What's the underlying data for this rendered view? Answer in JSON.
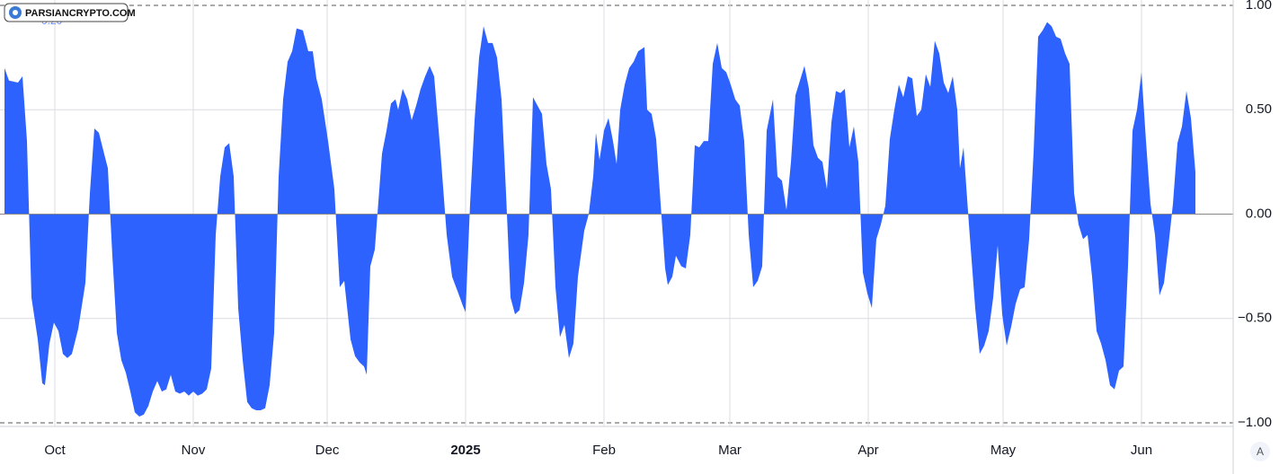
{
  "watermark": "PARSIANCRYPTO.COM",
  "legend_value": "0.20",
  "scale_button": "A",
  "chart_data": {
    "type": "area",
    "color": "#2e62ff",
    "grid": true,
    "x": [
      0,
      1,
      3,
      4,
      5,
      6,
      7.4,
      8.4,
      9,
      10,
      11,
      12,
      13,
      14,
      15,
      16.4,
      18,
      19,
      20,
      21,
      22.4,
      23,
      24,
      25,
      26,
      27,
      28,
      29,
      30,
      31,
      32,
      33,
      34,
      35,
      36,
      37,
      38,
      39,
      40,
      41,
      42,
      43,
      44,
      45,
      46,
      47,
      48,
      49,
      50,
      51,
      52,
      53,
      54,
      55,
      56,
      57,
      58,
      59,
      60,
      61,
      62,
      63,
      64,
      65,
      66.4,
      67.6,
      68.6,
      69.4,
      70.6,
      72,
      73.4,
      74.6,
      75.6,
      77,
      78,
      79,
      80,
      80.6,
      81.4,
      82.4,
      84,
      85,
      86,
      87,
      87.6,
      88.6,
      89.6,
      90.6,
      91.6,
      92.6,
      93.6,
      94.6,
      95.6,
      97,
      98.4,
      99.6,
      101,
      102,
      102.6,
      103.6,
      104.6,
      105.6,
      106.6,
      107.6,
      108.6,
      109.6,
      110.6,
      111.6,
      112.6,
      113.6,
      114.6,
      115.6,
      116.6,
      117.6,
      118.6,
      119.6,
      120.6,
      121.6,
      122.6,
      123.6,
      124.6,
      125.6,
      126.6,
      127.6,
      129,
      130,
      131,
      131.6,
      132.4,
      133.4,
      134.4,
      135.4,
      136.2,
      137,
      138,
      139,
      140,
      141,
      142.4,
      143,
      144,
      145,
      146,
      147,
      147.6,
      148.6,
      149.4,
      150.6,
      151.6,
      152.6,
      153.6,
      154.6,
      155.6,
      156.6,
      157.6,
      158.6,
      159.6,
      160.6,
      161.6,
      162.6,
      163.6,
      164.6,
      165.6,
      166.6,
      167.6,
      168.6,
      169.6,
      171,
      172,
      173,
      174,
      175,
      176,
      177,
      178,
      179,
      180,
      181,
      182,
      183,
      184,
      185,
      186,
      187,
      188,
      189,
      190,
      191,
      192,
      193,
      194,
      195,
      196,
      197,
      198,
      199,
      200,
      201,
      202,
      203,
      204,
      205,
      206,
      207,
      208,
      209,
      210,
      211,
      212,
      212.6,
      213.4,
      214.6,
      216,
      217,
      218,
      219,
      220,
      221,
      222,
      223,
      224,
      225,
      226,
      227,
      228,
      229,
      230,
      231,
      232,
      233,
      234,
      235,
      236,
      237,
      238,
      239,
      240,
      241,
      242,
      243,
      244,
      245,
      246,
      247,
      248,
      249,
      250,
      251,
      252,
      253,
      254,
      255,
      256,
      257,
      258,
      259,
      260,
      261,
      262,
      263,
      264,
      265
    ],
    "values": [
      0.7,
      0.64,
      0.63,
      0.66,
      0.35,
      -0.4,
      -0.6,
      -0.81,
      -0.82,
      -0.62,
      -0.52,
      -0.56,
      -0.67,
      -0.69,
      -0.67,
      -0.55,
      -0.33,
      0.1,
      0.41,
      0.39,
      0.27,
      0.22,
      -0.2,
      -0.57,
      -0.7,
      -0.76,
      -0.85,
      -0.95,
      -0.97,
      -0.96,
      -0.92,
      -0.85,
      -0.8,
      -0.85,
      -0.84,
      -0.77,
      -0.85,
      -0.86,
      -0.85,
      -0.87,
      -0.85,
      -0.87,
      -0.86,
      -0.84,
      -0.74,
      -0.1,
      0.18,
      0.32,
      0.34,
      0.18,
      -0.45,
      -0.7,
      -0.9,
      -0.93,
      -0.94,
      -0.94,
      -0.93,
      -0.82,
      -0.57,
      0.18,
      0.55,
      0.73,
      0.78,
      0.89,
      0.88,
      0.78,
      0.78,
      0.65,
      0.55,
      0.35,
      0.12,
      -0.35,
      -0.32,
      -0.6,
      -0.68,
      -0.71,
      -0.73,
      -0.77,
      -0.25,
      -0.17,
      0.29,
      0.4,
      0.53,
      0.55,
      0.5,
      0.6,
      0.55,
      0.45,
      0.52,
      0.6,
      0.66,
      0.71,
      0.66,
      0.3,
      -0.1,
      -0.3,
      -0.38,
      -0.44,
      -0.47,
      0.05,
      0.45,
      0.75,
      0.9,
      0.82,
      0.82,
      0.75,
      0.55,
      0.1,
      -0.4,
      -0.48,
      -0.46,
      -0.33,
      -0.1,
      0.56,
      0.52,
      0.48,
      0.24,
      0.12,
      -0.35,
      -0.59,
      -0.53,
      -0.69,
      -0.62,
      -0.3,
      -0.08,
      0.0,
      0.18,
      0.39,
      0.26,
      0.4,
      0.46,
      0.35,
      0.24,
      0.5,
      0.62,
      0.7,
      0.73,
      0.78,
      0.8,
      0.5,
      0.48,
      0.36,
      0.05,
      -0.26,
      -0.34,
      -0.3,
      -0.2,
      -0.25,
      -0.26,
      -0.1,
      0.33,
      0.32,
      0.35,
      0.35,
      0.72,
      0.82,
      0.7,
      0.68,
      0.62,
      0.55,
      0.52,
      0.35,
      -0.1,
      -0.35,
      -0.32,
      -0.25,
      0.4,
      0.55,
      0.18,
      0.16,
      0.02,
      0.25,
      0.57,
      0.64,
      0.71,
      0.6,
      0.33,
      0.27,
      0.25,
      0.12,
      0.44,
      0.59,
      0.58,
      0.6,
      0.32,
      0.42,
      0.25,
      -0.28,
      -0.38,
      -0.45,
      -0.12,
      -0.05,
      0.04,
      0.36,
      0.5,
      0.62,
      0.56,
      0.66,
      0.65,
      0.47,
      0.5,
      0.67,
      0.61,
      0.83,
      0.77,
      0.63,
      0.58,
      0.66,
      0.5,
      0.22,
      0.32,
      -0.05,
      -0.45,
      -0.67,
      -0.63,
      -0.56,
      -0.4,
      -0.15,
      -0.48,
      -0.63,
      -0.54,
      -0.43,
      -0.36,
      -0.35,
      -0.12,
      0.3,
      0.85,
      0.88,
      0.92,
      0.9,
      0.85,
      0.84,
      0.77,
      0.72,
      0.1,
      -0.05,
      -0.12,
      -0.1,
      -0.3,
      -0.56,
      -0.62,
      -0.7,
      -0.82,
      -0.84,
      -0.75,
      -0.73,
      -0.25,
      0.4,
      0.5,
      0.68,
      0.35,
      0.05,
      -0.1,
      -0.39,
      -0.33,
      -0.15,
      0.05,
      0.34,
      0.42,
      0.59,
      0.46,
      0.2
    ],
    "xlim": [
      0,
      273
    ],
    "xticks": [
      {
        "value": 11.2,
        "label": "Oct"
      },
      {
        "value": 42,
        "label": "Nov"
      },
      {
        "value": 71.8,
        "label": "Dec"
      },
      {
        "value": 102.6,
        "label": "2025"
      },
      {
        "value": 133.4,
        "label": "Feb"
      },
      {
        "value": 161.4,
        "label": "Mar"
      },
      {
        "value": 192.2,
        "label": "Apr"
      },
      {
        "value": 222.2,
        "label": "May"
      },
      {
        "value": 253,
        "label": "Jun"
      }
    ],
    "ylim": [
      -1,
      1
    ],
    "yticks": [
      {
        "value": 1,
        "label": "1.00"
      },
      {
        "value": 0.5,
        "label": "0.50"
      },
      {
        "value": 0,
        "label": "0.00"
      },
      {
        "value": -0.5,
        "label": "−0.50"
      },
      {
        "value": -1,
        "label": "−1.00"
      }
    ]
  }
}
